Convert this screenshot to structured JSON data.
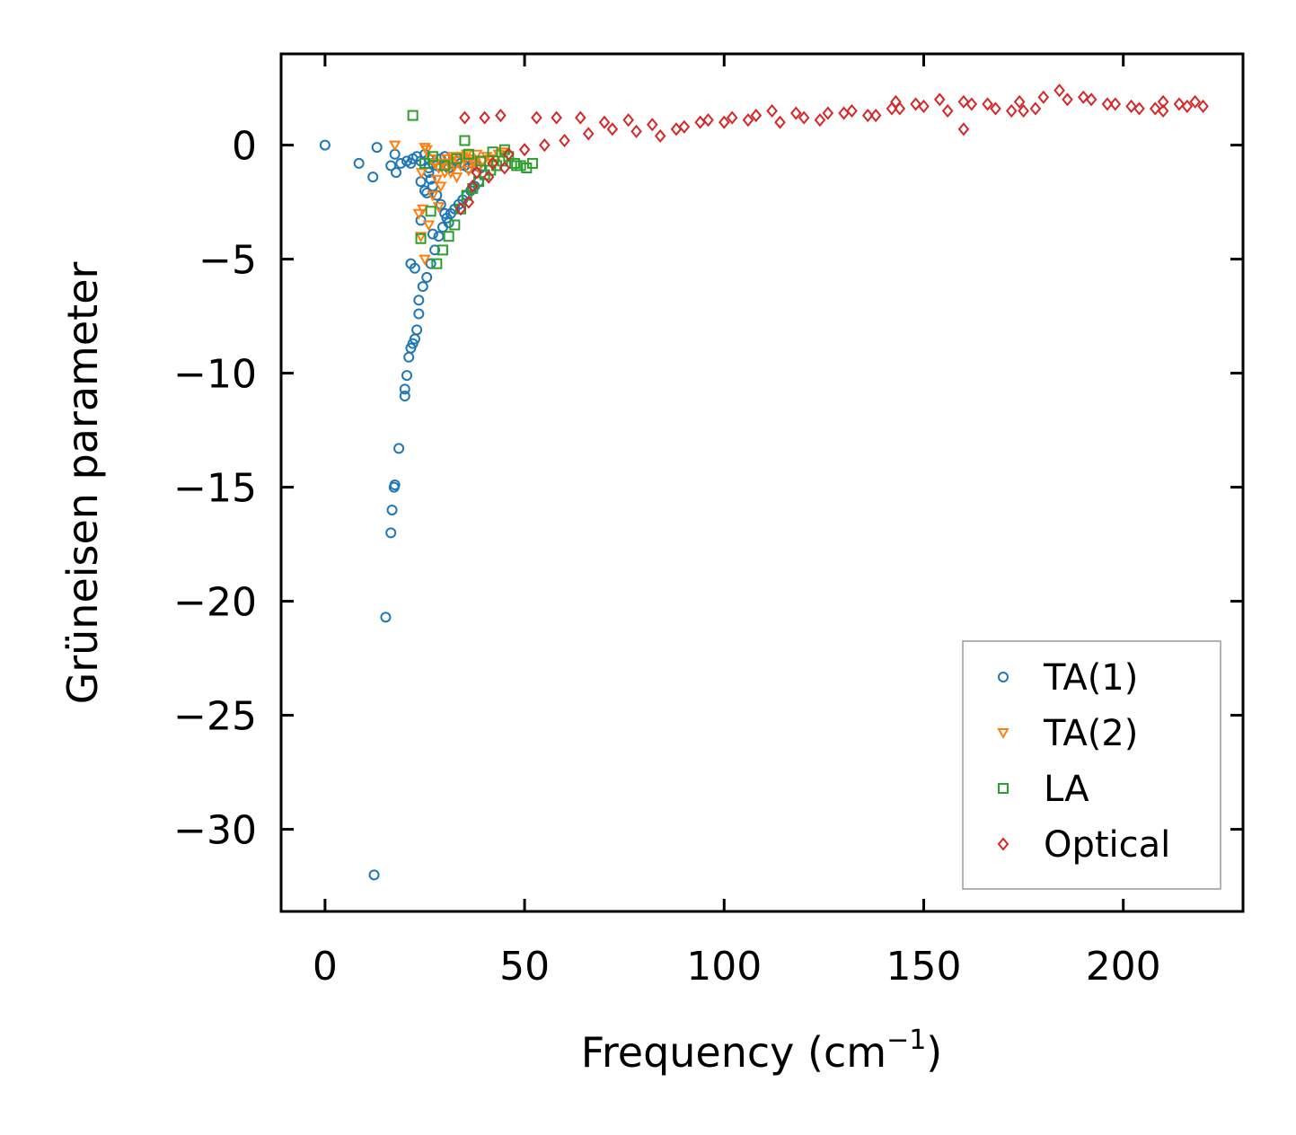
{
  "chart_data": {
    "type": "scatter",
    "title": "",
    "xlabel": "Frequency (cm",
    "xlabel_sup": "−1",
    "xlabel_close": ")",
    "ylabel": "Grüneisen parameter",
    "xlim": [
      -11,
      230
    ],
    "ylim": [
      -33.6,
      4.0
    ],
    "xticks": [
      0,
      50,
      100,
      150,
      200
    ],
    "xtick_labels": [
      "0",
      "50",
      "100",
      "150",
      "200"
    ],
    "yticks": [
      0,
      -5,
      -10,
      -15,
      -20,
      -25,
      -30
    ],
    "ytick_labels": [
      "0",
      "−5",
      "−10",
      "−15",
      "−20",
      "−25",
      "−30"
    ],
    "grid": false,
    "legend_position": "bottom-right",
    "series": [
      {
        "name": "TA(1)",
        "marker": "circle",
        "color": "#1f77b4",
        "x": [
          0,
          8.5,
          12,
          13,
          16.5,
          17.5,
          17.8,
          19,
          20.5,
          21.5,
          22,
          23,
          24,
          25,
          26,
          27,
          28,
          29,
          30,
          31,
          32,
          33,
          34,
          35,
          36,
          37,
          38,
          39,
          23.5,
          24.5,
          25.5,
          26.5,
          27.5,
          28.5,
          29.5,
          30.5,
          31.5,
          32.5,
          33.5,
          34.5,
          35.5,
          36.5,
          37.5,
          38.5,
          26,
          27,
          28,
          29,
          30,
          31,
          25,
          24,
          23.5,
          23,
          22.5,
          22,
          21.5,
          21,
          20.5,
          20,
          20,
          18.5,
          17.5,
          17.3,
          16.8,
          16.5,
          15.2,
          12.3,
          21.5,
          22.5,
          26.5,
          25.5,
          26,
          24,
          27
        ],
        "y": [
          0,
          -0.8,
          -1.4,
          -0.1,
          -0.9,
          -0.4,
          -1.2,
          -0.8,
          -0.7,
          -0.8,
          -0.6,
          -0.5,
          -0.7,
          -0.4,
          -0.6,
          -0.8,
          -0.9,
          -0.6,
          -0.5,
          -1.0,
          -0.8,
          -0.7,
          -0.8,
          -0.9,
          -1.0,
          -0.8,
          -0.9,
          -1.0,
          -6.8,
          -6.2,
          -5.8,
          -5.2,
          -4.6,
          -4.0,
          -3.6,
          -3.2,
          -3.0,
          -2.8,
          -2.6,
          -2.4,
          -2.2,
          -2.0,
          -1.8,
          -1.6,
          -1.2,
          -1.8,
          -2.2,
          -2.6,
          -3.0,
          -3.4,
          -2.0,
          -3.3,
          -7.4,
          -8.1,
          -8.5,
          -8.7,
          -8.9,
          -9.3,
          -10.1,
          -10.7,
          -11.0,
          -13.3,
          -14.9,
          -15.0,
          -16.0,
          -17.0,
          -20.7,
          -32.0,
          -5.2,
          -5.4,
          -1.5,
          -2.1,
          -1.0,
          -1.6,
          -3.9
        ]
      },
      {
        "name": "TA(2)",
        "marker": "triangle-down",
        "color": "#ff7f0e",
        "x": [
          17.5,
          23.5,
          24.5,
          25.5,
          26.5,
          27.5,
          28.5,
          29.5,
          30.5,
          31.5,
          32.5,
          33.5,
          34.5,
          35.5,
          36.5,
          37.5,
          38.5,
          39.5,
          40.5,
          41.5,
          42.5,
          43.5,
          44.5,
          24,
          25,
          26,
          27,
          28,
          29,
          30,
          31,
          32,
          33,
          34,
          35,
          36,
          37,
          38,
          25,
          24.2,
          28.5
        ],
        "y": [
          0,
          -3.0,
          -2.8,
          -0.2,
          -0.6,
          -0.8,
          -1.0,
          -0.8,
          -0.6,
          -1.2,
          -0.9,
          -0.7,
          -0.5,
          -0.4,
          -0.6,
          -0.8,
          -1.0,
          -0.7,
          -0.5,
          -0.6,
          -0.8,
          -0.4,
          -0.3,
          -4.0,
          -5.0,
          -3.5,
          -2.2,
          -1.5,
          -1.8,
          -1.2,
          -0.8,
          -0.5,
          -1.4,
          -0.9,
          -0.6,
          -1.1,
          -0.7,
          -0.4,
          -0.1,
          -1.2,
          -2.7
        ]
      },
      {
        "name": "LA",
        "marker": "square",
        "color": "#2ca02c",
        "x": [
          22,
          26.5,
          28,
          29.5,
          31,
          32.5,
          34,
          35.5,
          37,
          38.5,
          40,
          41.5,
          43,
          44.5,
          46,
          47.5,
          49,
          50.5,
          52,
          24,
          25,
          27,
          30,
          33,
          36,
          39,
          42,
          45,
          48,
          35
        ],
        "y": [
          1.3,
          -2.9,
          -5.2,
          -4.6,
          -4.0,
          -3.5,
          -2.8,
          -2.2,
          -1.9,
          -1.6,
          -1.3,
          -1.1,
          -0.9,
          -0.7,
          -0.5,
          -0.8,
          -0.9,
          -1.0,
          -0.8,
          -4.1,
          -0.8,
          -0.5,
          -0.9,
          -0.6,
          -0.4,
          -0.7,
          -0.3,
          -0.2,
          -0.9,
          0.2
        ]
      },
      {
        "name": "Optical",
        "marker": "diamond",
        "color": "#d62728",
        "x": [
          35,
          40,
          44,
          53,
          58,
          64,
          70,
          76,
          82,
          88,
          94,
          100,
          106,
          112,
          118,
          124,
          130,
          136,
          142,
          148,
          154,
          160,
          166,
          172,
          178,
          184,
          190,
          196,
          202,
          208,
          214,
          218,
          38,
          42,
          46,
          50,
          55,
          60,
          66,
          72,
          78,
          84,
          90,
          96,
          102,
          108,
          114,
          120,
          126,
          132,
          138,
          144,
          150,
          156,
          162,
          168,
          174,
          180,
          186,
          192,
          198,
          204,
          210,
          216,
          220,
          36,
          34,
          37,
          41,
          45,
          160,
          175,
          143,
          210
        ],
        "y": [
          1.2,
          1.2,
          1.3,
          1.2,
          1.2,
          1.2,
          1.0,
          1.1,
          0.9,
          0.7,
          1.0,
          1.0,
          1.1,
          1.5,
          1.4,
          1.1,
          1.4,
          1.3,
          1.6,
          1.8,
          2.0,
          1.9,
          1.8,
          1.5,
          1.6,
          2.4,
          2.1,
          1.8,
          1.7,
          1.6,
          1.8,
          1.9,
          -1.2,
          -0.8,
          -0.4,
          -0.2,
          0.0,
          0.2,
          0.5,
          0.7,
          0.6,
          0.4,
          0.8,
          1.1,
          1.2,
          1.3,
          1.0,
          1.2,
          1.4,
          1.5,
          1.3,
          1.6,
          1.7,
          1.5,
          1.8,
          1.6,
          1.9,
          2.1,
          2.0,
          2.0,
          1.8,
          1.6,
          1.5,
          1.7,
          1.7,
          -2.5,
          -2.8,
          -1.8,
          -1.4,
          -1.0,
          0.7,
          1.5,
          1.9,
          1.9
        ]
      }
    ]
  }
}
